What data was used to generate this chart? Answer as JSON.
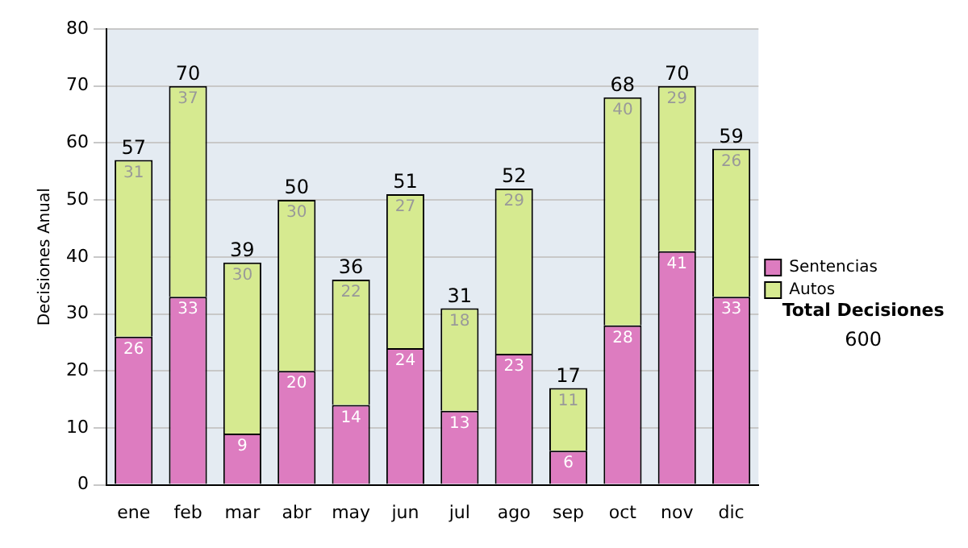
{
  "chart_data": {
    "type": "bar",
    "stacked": true,
    "ylabel": "Decisiones Anual",
    "categories": [
      "ene",
      "feb",
      "mar",
      "abr",
      "may",
      "jun",
      "jul",
      "ago",
      "sep",
      "oct",
      "nov",
      "dic"
    ],
    "series": [
      {
        "name": "Sentencias",
        "color": "#dd7cc0",
        "values": [
          26,
          33,
          9,
          20,
          14,
          24,
          13,
          23,
          6,
          28,
          41,
          33
        ]
      },
      {
        "name": "Autos",
        "color": "#d6ea90",
        "values": [
          31,
          37,
          30,
          30,
          22,
          27,
          18,
          29,
          11,
          40,
          29,
          26
        ]
      }
    ],
    "totals": [
      "57",
      "70",
      "39",
      "50",
      "36",
      "51",
      "31",
      "52",
      "17",
      "68",
      "70",
      "59"
    ],
    "ylim": [
      0,
      80
    ],
    "yticks": [
      0,
      10,
      20,
      30,
      40,
      50,
      60,
      70,
      80
    ],
    "grid": "y",
    "legend": "right",
    "data_labels": true,
    "annotations": [
      "Total Decisiones",
      "600"
    ]
  }
}
